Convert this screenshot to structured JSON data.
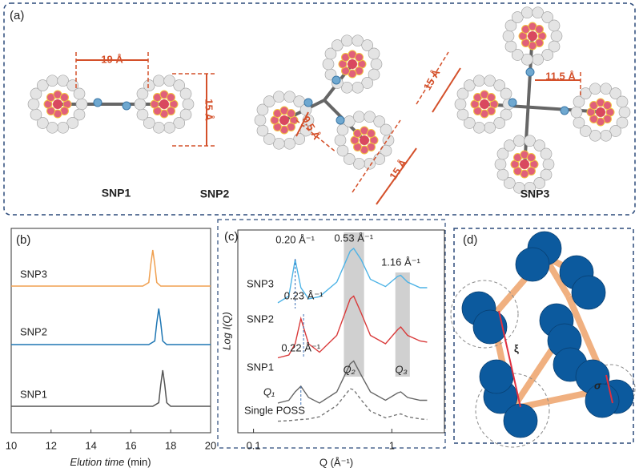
{
  "panel_a": {
    "label": "(a)",
    "molecules": [
      {
        "name": "SNP1",
        "dimensions": [
          "19 Å",
          "15 Å"
        ]
      },
      {
        "name": "SNP2",
        "dimensions": [
          "9.5 Å",
          "15 Å"
        ]
      },
      {
        "name": "SNP3",
        "dimensions": [
          "15 Å",
          "11.5 Å"
        ]
      }
    ]
  },
  "chart_data": [
    {
      "type": "line",
      "label": "(b)",
      "xlabel": "Elution time",
      "xlabel_unit": "(min)",
      "xlim": [
        10,
        20
      ],
      "xticks": [
        10,
        12,
        14,
        16,
        18,
        20
      ],
      "series": [
        {
          "name": "SNP3",
          "color": "#f0a050",
          "x": [
            10,
            16.6,
            16.9,
            17.0,
            17.1,
            17.2,
            17.3,
            17.5,
            18,
            20
          ],
          "values": [
            0,
            0,
            0.1,
            0.6,
            1,
            0.6,
            0.1,
            0,
            0,
            0
          ]
        },
        {
          "name": "SNP2",
          "color": "#1f77b4",
          "x": [
            10,
            16.9,
            17.2,
            17.3,
            17.4,
            17.5,
            17.6,
            17.8,
            18.3,
            20
          ],
          "values": [
            0,
            0,
            0.1,
            0.6,
            1,
            0.6,
            0.1,
            0,
            0,
            0
          ]
        },
        {
          "name": "SNP1",
          "color": "#555555",
          "x": [
            10,
            17.1,
            17.4,
            17.5,
            17.6,
            17.7,
            17.8,
            18,
            18.5,
            20
          ],
          "values": [
            0,
            0,
            0.1,
            0.6,
            1,
            0.6,
            0.1,
            0,
            0,
            0
          ]
        }
      ]
    },
    {
      "type": "line",
      "label": "(c)",
      "xlabel": "Q (Å⁻¹)",
      "ylabel": "Log I(Q)",
      "log_x": true,
      "xlim": [
        0.077,
        2.4
      ],
      "xticks": [
        0.1,
        1
      ],
      "x": [
        0.15,
        0.18,
        0.2,
        0.22,
        0.25,
        0.3,
        0.4,
        0.5,
        0.53,
        0.6,
        0.7,
        0.9,
        1.1,
        1.16,
        1.3,
        1.6,
        1.8
      ],
      "series": [
        {
          "name": "SNP3",
          "color": "#4db3e6",
          "values": [
            0.03,
            0.15,
            0.8,
            0.3,
            0.1,
            0.14,
            0.4,
            0.95,
            1.0,
            0.8,
            0.45,
            0.32,
            0.5,
            0.52,
            0.4,
            0.3,
            0.3
          ]
        },
        {
          "name": "SNP2",
          "color": "#d93a3a",
          "values": [
            0.05,
            0.1,
            0.3,
            0.75,
            0.3,
            0.15,
            0.45,
            1.1,
            1.15,
            0.85,
            0.45,
            0.3,
            0.55,
            0.6,
            0.45,
            0.35,
            0.33
          ]
        },
        {
          "name": "SNP1",
          "color": "#666666",
          "values": [
            0.1,
            0.15,
            0.3,
            0.4,
            0.2,
            0.1,
            0.3,
            0.8,
            0.85,
            0.6,
            0.3,
            0.15,
            0.28,
            0.3,
            0.2,
            0.15,
            0.15
          ]
        },
        {
          "name": "Single POSS",
          "color": "#777777",
          "dashed": true,
          "values": [
            0.02,
            0.03,
            0.04,
            0.05,
            0.06,
            0.1,
            0.3,
            0.6,
            0.58,
            0.4,
            0.2,
            0.08,
            0.14,
            0.15,
            0.1,
            0.06,
            0.05
          ]
        }
      ],
      "bands": [
        [
          0.45,
          0.63
        ],
        [
          1.06,
          1.35
        ]
      ],
      "peaks": [
        {
          "label": "0.20 Å⁻¹",
          "q": 0.2
        },
        {
          "label": "0.53 Å⁻¹",
          "q": 0.53
        },
        {
          "label": "1.16 Å⁻¹",
          "q": 1.16
        },
        {
          "label": "0.23 Å⁻¹",
          "q": 0.23
        },
        {
          "label": "0.22 Å⁻¹",
          "q": 0.22
        }
      ],
      "q_labels": [
        "Q₁",
        "Q₂",
        "Q₃"
      ]
    }
  ],
  "panel_d": {
    "label": "(d)",
    "symbols": [
      "ξ",
      "σ"
    ]
  }
}
